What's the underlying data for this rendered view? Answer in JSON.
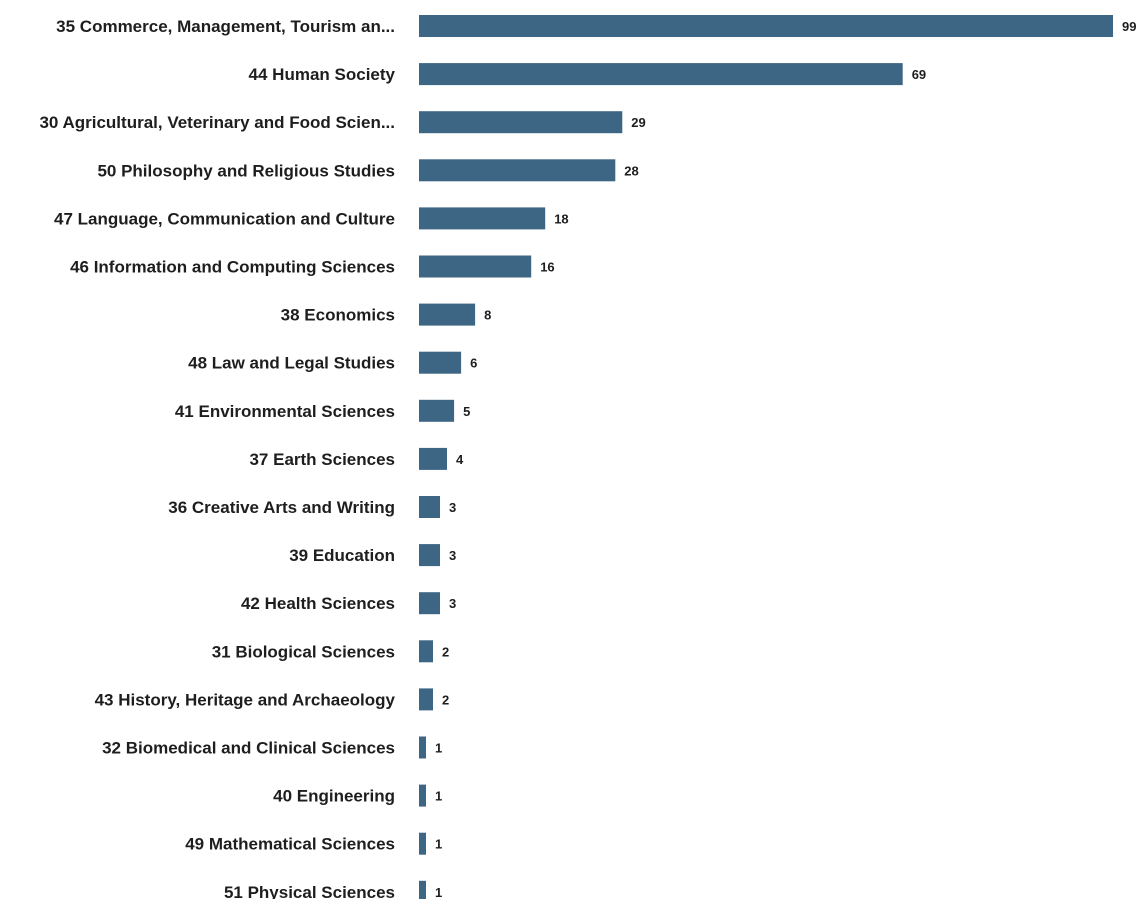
{
  "chart_data": {
    "type": "bar",
    "orientation": "horizontal",
    "categories": [
      "35 Commerce, Management, Tourism an...",
      "44 Human Society",
      "30 Agricultural, Veterinary and Food Scien...",
      "50 Philosophy and Religious Studies",
      "47 Language, Communication and Culture",
      "46 Information and Computing Sciences",
      "38 Economics",
      "48 Law and Legal Studies",
      "41 Environmental Sciences",
      "37 Earth Sciences",
      "36 Creative Arts and Writing",
      "39 Education",
      "42 Health Sciences",
      "31 Biological Sciences",
      "43 History, Heritage and Archaeology",
      "32 Biomedical and Clinical Sciences",
      "40 Engineering",
      "49 Mathematical Sciences",
      "51 Physical Sciences"
    ],
    "values": [
      99,
      69,
      29,
      28,
      18,
      16,
      8,
      6,
      5,
      4,
      3,
      3,
      3,
      2,
      2,
      1,
      1,
      1,
      1
    ],
    "value_labels": [
      "99",
      "69",
      "29",
      "28",
      "18",
      "16",
      "8",
      "6",
      "5",
      "4",
      "3",
      "3",
      "3",
      "2",
      "2",
      "1",
      "1",
      "1",
      "1"
    ],
    "bar_color": "#3d6584",
    "xlim": [
      0,
      99
    ],
    "grid": false,
    "legend": "none"
  }
}
